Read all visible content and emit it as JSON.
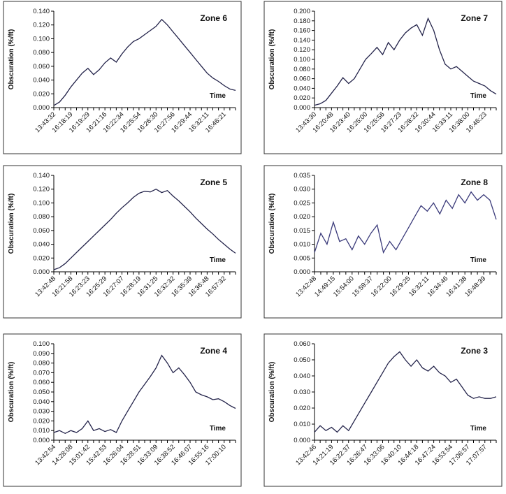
{
  "chart_data": [
    {
      "type": "line",
      "title": "Zone 6",
      "y_label": "Obscuration (%/ft)",
      "x_label": "Time",
      "color": "#23234a",
      "categories": [
        "13:43:32",
        null,
        null,
        "16:18:19",
        null,
        null,
        "16:19:29",
        null,
        null,
        "16:21:16",
        null,
        null,
        "16:22:34",
        null,
        null,
        "16:25:54",
        null,
        null,
        "16:26:30",
        null,
        null,
        "16:27:56",
        null,
        null,
        "16:29:44",
        null,
        null,
        "16:32:11",
        null,
        null,
        "16:46:21",
        null,
        null
      ],
      "values": [
        0.003,
        0.008,
        0.018,
        0.03,
        0.04,
        0.05,
        0.057,
        0.048,
        0.055,
        0.065,
        0.072,
        0.066,
        0.078,
        0.088,
        0.096,
        0.1,
        0.106,
        0.112,
        0.118,
        0.128,
        0.12,
        0.11,
        0.1,
        0.09,
        0.08,
        0.07,
        0.06,
        0.05,
        0.043,
        0.038,
        0.032,
        0.027,
        0.025
      ],
      "ylim": [
        0,
        0.14
      ],
      "yticks": [
        {
          "value": 0,
          "label": "0.000"
        },
        {
          "value": 0.02,
          "label": "0.020"
        },
        {
          "value": 0.04,
          "label": "0.040"
        },
        {
          "value": 0.06,
          "label": "0.060"
        },
        {
          "value": 0.08,
          "label": "0.080"
        },
        {
          "value": 0.1,
          "label": "0.100"
        },
        {
          "value": 0.12,
          "label": "0.120"
        },
        {
          "value": 0.14,
          "label": "0.140"
        }
      ]
    },
    {
      "type": "line",
      "title": "Zone 7",
      "y_label": "Obscuration (%/ft)",
      "x_label": "Time",
      "color": "#23234a",
      "categories": [
        "13:43:30",
        null,
        null,
        "16:20:48",
        null,
        null,
        "16:23:40",
        null,
        null,
        "16:25:00",
        null,
        null,
        "16:25:56",
        null,
        null,
        "16:27:23",
        null,
        null,
        "16:28:32",
        null,
        null,
        "16:30:44",
        null,
        null,
        "16:33:11",
        null,
        null,
        "16:38:00",
        null,
        null,
        "16:46:23",
        null,
        null
      ],
      "values": [
        0.005,
        0.008,
        0.015,
        0.03,
        0.045,
        0.062,
        0.05,
        0.06,
        0.08,
        0.1,
        0.112,
        0.125,
        0.11,
        0.135,
        0.12,
        0.14,
        0.155,
        0.165,
        0.172,
        0.15,
        0.185,
        0.16,
        0.12,
        0.09,
        0.08,
        0.085,
        0.075,
        0.065,
        0.055,
        0.05,
        0.045,
        0.035,
        0.028
      ],
      "ylim": [
        0,
        0.2
      ],
      "yticks": [
        {
          "value": 0,
          "label": "0.000"
        },
        {
          "value": 0.02,
          "label": "0.020"
        },
        {
          "value": 0.04,
          "label": "0.040"
        },
        {
          "value": 0.06,
          "label": "0.060"
        },
        {
          "value": 0.08,
          "label": "0.080"
        },
        {
          "value": 0.1,
          "label": "0.100"
        },
        {
          "value": 0.12,
          "label": "0.120"
        },
        {
          "value": 0.14,
          "label": "0.140"
        },
        {
          "value": 0.16,
          "label": "0.160"
        },
        {
          "value": 0.18,
          "label": "0.180"
        },
        {
          "value": 0.2,
          "label": "0.200"
        }
      ]
    },
    {
      "type": "line",
      "title": "Zone 5",
      "y_label": "Obscuration (%/ft)",
      "x_label": "Time",
      "color": "#23234a",
      "categories": [
        "13:42:48",
        null,
        null,
        "16:21:58",
        null,
        null,
        "16:23:23",
        null,
        null,
        "16:25:29",
        null,
        null,
        "16:27:07",
        null,
        null,
        "16:28:19",
        null,
        null,
        "16:31:25",
        null,
        null,
        "16:32:32",
        null,
        null,
        "16:35:39",
        null,
        null,
        "16:36:48",
        null,
        null,
        "16:57:32",
        null,
        null
      ],
      "values": [
        0.003,
        0.006,
        0.012,
        0.02,
        0.028,
        0.036,
        0.044,
        0.052,
        0.06,
        0.068,
        0.076,
        0.085,
        0.093,
        0.1,
        0.108,
        0.114,
        0.117,
        0.116,
        0.12,
        0.115,
        0.118,
        0.11,
        0.103,
        0.095,
        0.087,
        0.078,
        0.07,
        0.062,
        0.055,
        0.047,
        0.04,
        0.033,
        0.027
      ],
      "ylim": [
        0,
        0.14
      ],
      "yticks": [
        {
          "value": 0,
          "label": "0.000"
        },
        {
          "value": 0.02,
          "label": "0.020"
        },
        {
          "value": 0.04,
          "label": "0.040"
        },
        {
          "value": 0.06,
          "label": "0.060"
        },
        {
          "value": 0.08,
          "label": "0.080"
        },
        {
          "value": 0.1,
          "label": "0.100"
        },
        {
          "value": 0.12,
          "label": "0.120"
        },
        {
          "value": 0.14,
          "label": "0.140"
        }
      ]
    },
    {
      "type": "line",
      "title": "Zone 8",
      "y_label": "Obscuration (%/ft)",
      "x_label": "Time",
      "color": "#3a3a7a",
      "categories": [
        "13:42:48",
        null,
        null,
        "14:49:15",
        null,
        null,
        "15:54:00",
        null,
        null,
        "15:59:37",
        null,
        null,
        "16:22:00",
        null,
        null,
        "16:29:25",
        null,
        null,
        "16:32:11",
        null,
        null,
        "16:34:46",
        null,
        null,
        "16:41:38",
        null,
        null,
        "16:48:39",
        null,
        null
      ],
      "values": [
        0.007,
        0.014,
        0.01,
        0.018,
        0.011,
        0.012,
        0.008,
        0.013,
        0.01,
        0.014,
        0.017,
        0.007,
        0.011,
        0.008,
        0.012,
        0.016,
        0.02,
        0.024,
        0.022,
        0.025,
        0.021,
        0.026,
        0.023,
        0.028,
        0.025,
        0.029,
        0.026,
        0.028,
        0.026,
        0.019
      ],
      "ylim": [
        0,
        0.035
      ],
      "yticks": [
        {
          "value": 0,
          "label": "0.000"
        },
        {
          "value": 0.005,
          "label": "0.005"
        },
        {
          "value": 0.01,
          "label": "0.010"
        },
        {
          "value": 0.015,
          "label": "0.015"
        },
        {
          "value": 0.02,
          "label": "0.020"
        },
        {
          "value": 0.025,
          "label": "0.025"
        },
        {
          "value": 0.03,
          "label": "0.030"
        },
        {
          "value": 0.035,
          "label": "0.035"
        }
      ]
    },
    {
      "type": "line",
      "title": "Zone 4",
      "y_label": "Obscuration (%/ft)",
      "x_label": "Time",
      "color": "#23234a",
      "categories": [
        "13:42:54",
        null,
        null,
        "14:28:08",
        null,
        null,
        "15:01:42",
        null,
        null,
        "15:42:53",
        null,
        null,
        "16:26:04",
        null,
        null,
        "16:28:51",
        null,
        null,
        "16:33:09",
        null,
        null,
        "16:38:52",
        null,
        null,
        "16:46:07",
        null,
        null,
        "16:55:16",
        null,
        null,
        "17:00:10",
        null,
        null
      ],
      "values": [
        0.008,
        0.01,
        0.007,
        0.01,
        0.008,
        0.012,
        0.02,
        0.01,
        0.012,
        0.009,
        0.011,
        0.008,
        0.02,
        0.03,
        0.04,
        0.05,
        0.058,
        0.066,
        0.075,
        0.088,
        0.08,
        0.07,
        0.075,
        0.068,
        0.06,
        0.05,
        0.047,
        0.045,
        0.042,
        0.043,
        0.04,
        0.036,
        0.033
      ],
      "ylim": [
        0,
        0.1
      ],
      "yticks": [
        {
          "value": 0,
          "label": "0.000"
        },
        {
          "value": 0.01,
          "label": "0.010"
        },
        {
          "value": 0.02,
          "label": "0.020"
        },
        {
          "value": 0.03,
          "label": "0.030"
        },
        {
          "value": 0.04,
          "label": "0.040"
        },
        {
          "value": 0.05,
          "label": "0.050"
        },
        {
          "value": 0.06,
          "label": "0.060"
        },
        {
          "value": 0.07,
          "label": "0.070"
        },
        {
          "value": 0.08,
          "label": "0.080"
        },
        {
          "value": 0.09,
          "label": "0.090"
        },
        {
          "value": 0.1,
          "label": "0.100"
        }
      ]
    },
    {
      "type": "line",
      "title": "Zone 3",
      "y_label": "Obscuration (%/ft)",
      "x_label": "Time",
      "color": "#23234a",
      "categories": [
        "13:42:46",
        null,
        null,
        "14:21:19",
        null,
        null,
        "16:22:37",
        null,
        null,
        "16:26:47",
        null,
        null,
        "16:33:06",
        null,
        null,
        "16:40:10",
        null,
        null,
        "16:44:18",
        null,
        null,
        "16:47:24",
        null,
        null,
        "16:53:54",
        null,
        null,
        "17:06:57",
        null,
        null,
        "17:07:57",
        null,
        null
      ],
      "values": [
        0.005,
        0.009,
        0.006,
        0.008,
        0.005,
        0.009,
        0.006,
        0.012,
        0.018,
        0.024,
        0.03,
        0.036,
        0.042,
        0.048,
        0.052,
        0.055,
        0.05,
        0.046,
        0.05,
        0.045,
        0.043,
        0.046,
        0.042,
        0.04,
        0.036,
        0.038,
        0.033,
        0.028,
        0.026,
        0.027,
        0.026,
        0.026,
        0.027
      ],
      "ylim": [
        0,
        0.06
      ],
      "yticks": [
        {
          "value": 0,
          "label": "0.000"
        },
        {
          "value": 0.01,
          "label": "0.010"
        },
        {
          "value": 0.02,
          "label": "0.020"
        },
        {
          "value": 0.03,
          "label": "0.030"
        },
        {
          "value": 0.04,
          "label": "0.040"
        },
        {
          "value": 0.05,
          "label": "0.050"
        },
        {
          "value": 0.06,
          "label": "0.060"
        }
      ]
    }
  ]
}
